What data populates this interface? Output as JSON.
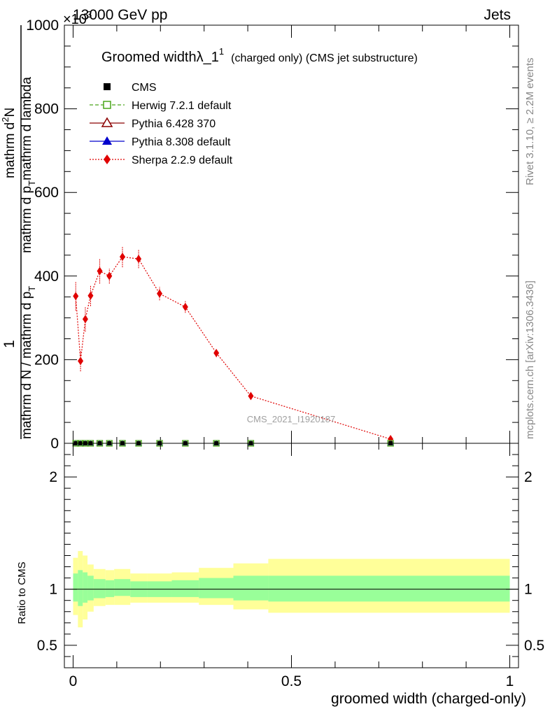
{
  "header": {
    "left": "13000 GeV pp",
    "right": "Jets",
    "exponent": "×10",
    "exponent_power": "3"
  },
  "side_text": {
    "top": "Rivet 3.1.10, ≥ 2.2M events",
    "bottom": "mcplots.cern.ch [arXiv:1306.3436]"
  },
  "watermark": "CMS_2021_I1920187",
  "title": {
    "main": "Groomed width",
    "lambda": "λ_1",
    "sup": "1",
    "rest": "(charged only) (CMS jet substructure)"
  },
  "ylabel_top": {
    "numerator": "1",
    "line1": "mathrm d N / mathrm d p",
    "line1_sub": "T",
    "line2": "mathrm d p",
    "line2_sub": "T",
    "line2_rest": "mathrm d lambda",
    "numerator2": "mathrm d",
    "numerator2_sup": "2",
    "numerator2_rest": "N"
  },
  "ylabel_bottom": "Ratio to CMS",
  "xlabel": "groomed width (charged-only)",
  "legend": [
    {
      "name": "CMS",
      "color": "#000000",
      "marker": "square-filled",
      "line": "none"
    },
    {
      "name": "Herwig 7.2.1 default",
      "color": "#4aa51a",
      "marker": "square-open",
      "line": "dashed"
    },
    {
      "name": "Pythia 6.428 370",
      "color": "#8b0000",
      "marker": "triangle-open",
      "line": "solid"
    },
    {
      "name": "Pythia 8.308 default",
      "color": "#0000cc",
      "marker": "triangle-filled",
      "line": "solid"
    },
    {
      "name": "Sherpa 2.2.9 default",
      "color": "#e00000",
      "marker": "diamond-filled",
      "line": "dotted"
    }
  ],
  "chart_data": [
    {
      "type": "line",
      "panel": "main",
      "xlim": [
        -0.02,
        1.02
      ],
      "ylim": [
        0,
        1000
      ],
      "y_scale_factor": "×10^3",
      "yticks": [
        0,
        200,
        400,
        600,
        800,
        1000
      ],
      "ytick_labels": [
        "0",
        "200",
        "400",
        "600",
        "800",
        "1000"
      ],
      "series": [
        {
          "name": "Sherpa 2.2.9 default",
          "x": [
            0.006,
            0.017,
            0.028,
            0.04,
            0.061,
            0.083,
            0.113,
            0.15,
            0.198,
            0.257,
            0.328,
            0.407,
            0.727
          ],
          "y": [
            352,
            197,
            297,
            353,
            412,
            400,
            446,
            441,
            358,
            326,
            216,
            113,
            10
          ],
          "yerr": [
            35,
            25,
            30,
            25,
            30,
            18,
            25,
            22,
            16,
            14,
            10,
            6,
            2
          ]
        },
        {
          "name": "CMS",
          "x": [
            0.006,
            0.017,
            0.028,
            0.04,
            0.061,
            0.083,
            0.113,
            0.15,
            0.198,
            0.257,
            0.328,
            0.407,
            0.727
          ],
          "y": [
            0,
            0,
            0,
            0,
            0,
            0,
            0,
            0,
            0,
            0,
            0,
            0,
            0
          ]
        }
      ]
    },
    {
      "type": "area",
      "panel": "ratio",
      "xlim": [
        -0.02,
        1.02
      ],
      "ylim": [
        0.3,
        2.3
      ],
      "yticks": [
        0.5,
        1,
        2
      ],
      "ytick_labels": [
        "0.5",
        "1",
        "2"
      ],
      "xticks": [
        0,
        0.5,
        1
      ],
      "xtick_labels": [
        "0",
        "0.5",
        "1"
      ],
      "bin_edges": [
        0.0,
        0.011,
        0.022,
        0.033,
        0.047,
        0.074,
        0.094,
        0.131,
        0.17,
        0.226,
        0.288,
        0.367,
        0.447,
        1.0
      ],
      "band_outer": {
        "lo": [
          0.77,
          0.66,
          0.73,
          0.8,
          0.85,
          0.86,
          0.86,
          0.88,
          0.88,
          0.88,
          0.86,
          0.82,
          0.79
        ],
        "hi": [
          1.28,
          1.34,
          1.3,
          1.22,
          1.18,
          1.17,
          1.18,
          1.14,
          1.14,
          1.15,
          1.19,
          1.23,
          1.27
        ]
      },
      "band_inner": {
        "lo": [
          0.89,
          0.85,
          0.88,
          0.9,
          0.92,
          0.93,
          0.94,
          0.93,
          0.93,
          0.93,
          0.92,
          0.9,
          0.89
        ],
        "hi": [
          1.14,
          1.17,
          1.15,
          1.12,
          1.09,
          1.08,
          1.09,
          1.07,
          1.07,
          1.08,
          1.1,
          1.12,
          1.12
        ]
      },
      "colors": {
        "outer": "#ffff99",
        "inner": "#99ff99",
        "reference": "#000000"
      }
    }
  ]
}
